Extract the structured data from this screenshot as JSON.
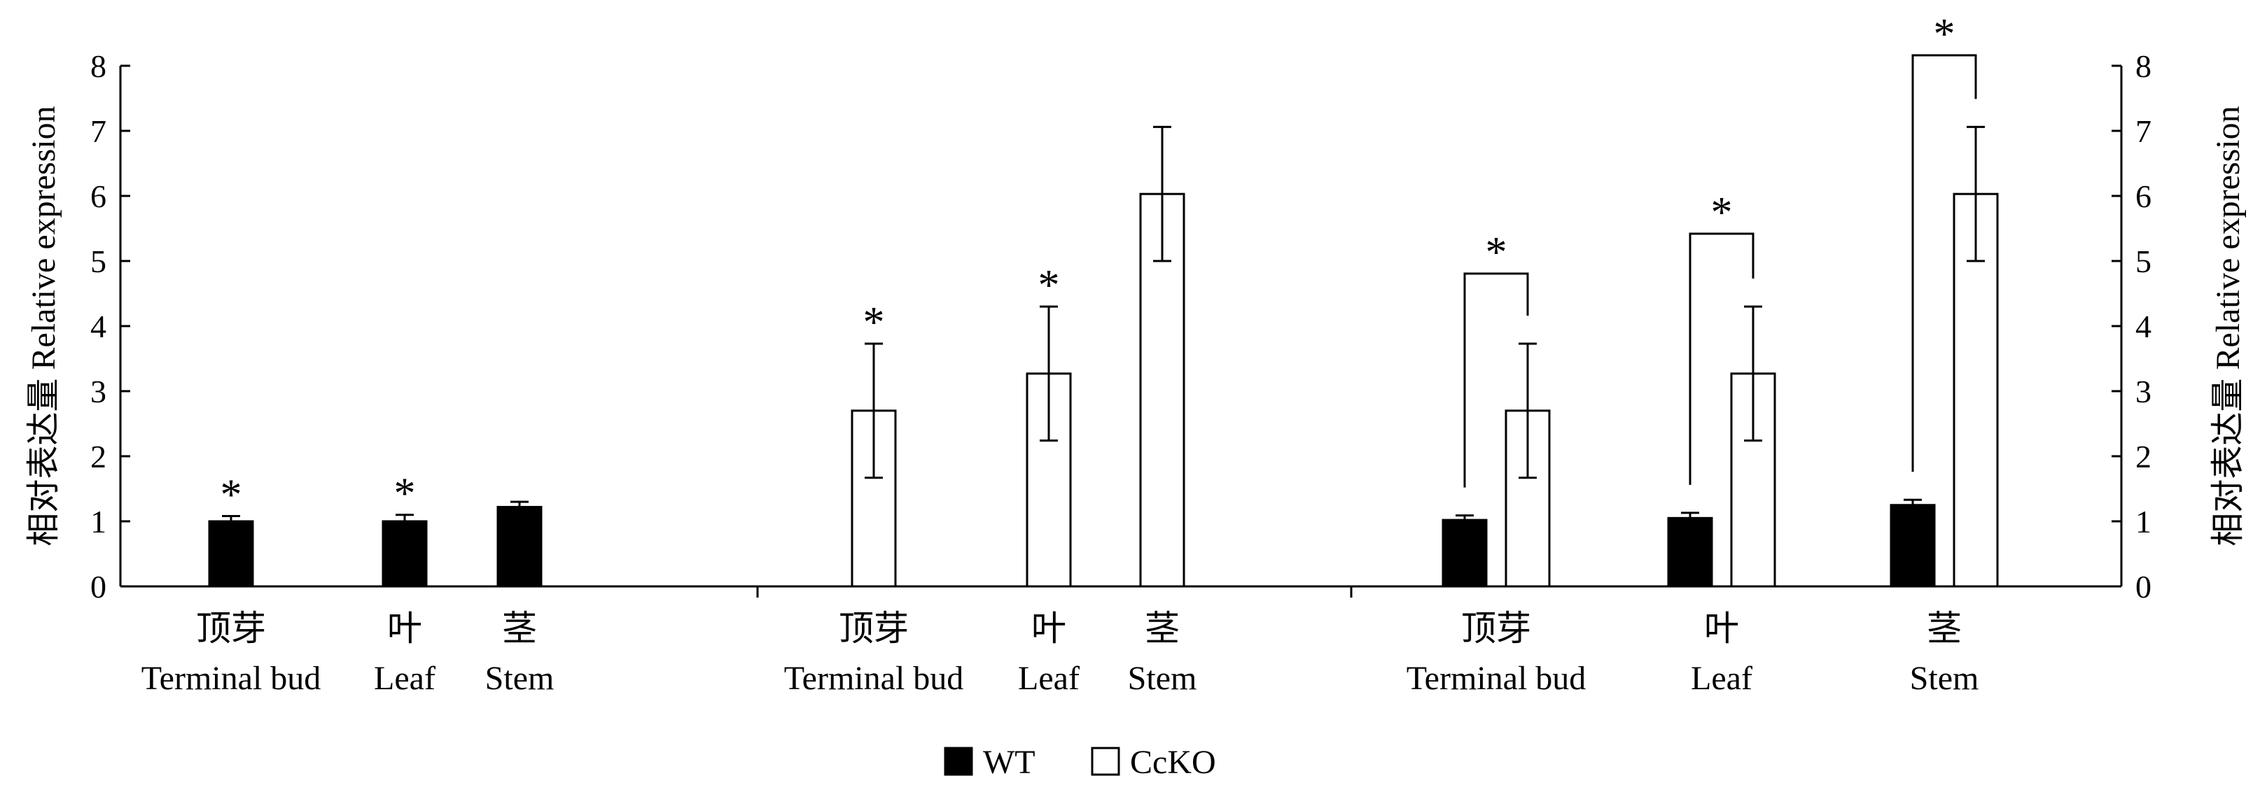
{
  "chart_data": {
    "type": "bar",
    "ylabel": "相对表达量 Relative expression",
    "ylabel_right": "相对表达量 Relative expression",
    "ylim": [
      0,
      8
    ],
    "yticks": [
      0,
      1,
      2,
      3,
      4,
      5,
      6,
      7,
      8
    ],
    "legend_position": "bottom-center",
    "series": [
      {
        "name": "WT",
        "fill": "#000000"
      },
      {
        "name": "CcKO",
        "fill": "#ffffff"
      }
    ],
    "groups": [
      {
        "axis": "left",
        "categories": [
          {
            "zh": "顶芽",
            "en": "Terminal bud"
          },
          {
            "zh": "叶",
            "en": "Leaf"
          },
          {
            "zh": "茎",
            "en": "Stem"
          }
        ],
        "bars": [
          {
            "series": "WT",
            "cat": 0,
            "value": 1.0,
            "err": 0.08,
            "sig": "*"
          },
          {
            "series": "WT",
            "cat": 1,
            "value": 1.0,
            "err": 0.1,
            "sig": "*"
          },
          {
            "series": "WT",
            "cat": 2,
            "value": 1.22,
            "err": 0.08,
            "sig": ""
          }
        ]
      },
      {
        "axis": "left",
        "categories": [
          {
            "zh": "顶芽",
            "en": "Terminal bud"
          },
          {
            "zh": "叶",
            "en": "Leaf"
          },
          {
            "zh": "茎",
            "en": "Stem"
          }
        ],
        "bars": [
          {
            "series": "CcKO",
            "cat": 0,
            "value": 2.7,
            "err": 1.03,
            "sig": "*"
          },
          {
            "series": "CcKO",
            "cat": 1,
            "value": 3.27,
            "err": 1.03,
            "sig": "*"
          },
          {
            "series": "CcKO",
            "cat": 2,
            "value": 6.03,
            "err": 1.03,
            "sig": ""
          }
        ]
      },
      {
        "axis": "right",
        "categories": [
          {
            "zh": "顶芽",
            "en": "Terminal bud"
          },
          {
            "zh": "叶",
            "en": "Leaf"
          },
          {
            "zh": "茎",
            "en": "Stem"
          }
        ],
        "pairs": [
          {
            "cat": 0,
            "wt": 1.02,
            "wt_err": 0.07,
            "ko": 2.7,
            "ko_err": 1.03,
            "sig": "*"
          },
          {
            "cat": 1,
            "wt": 1.05,
            "wt_err": 0.08,
            "ko": 3.27,
            "ko_err": 1.03,
            "sig": "*"
          },
          {
            "cat": 2,
            "wt": 1.25,
            "wt_err": 0.08,
            "ko": 6.03,
            "ko_err": 1.03,
            "sig": "*"
          }
        ]
      }
    ]
  }
}
